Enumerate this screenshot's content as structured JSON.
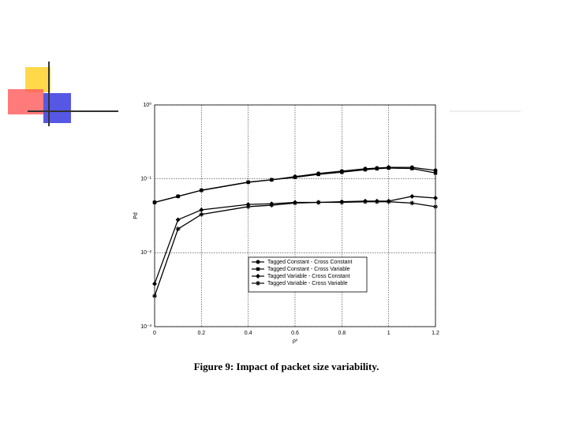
{
  "chart_data": {
    "type": "line",
    "title": "Figure 9: Impact of packet size variability.",
    "x_label": "ρᵛ",
    "y_label": "Pd",
    "x": [
      0,
      0.1,
      0.2,
      0.4,
      0.5,
      0.6,
      0.7,
      0.8,
      0.9,
      0.95,
      1.0,
      1.1,
      1.2
    ],
    "series": [
      {
        "name": "Tagged Constant - Cross Constant",
        "color": "#000000",
        "marker": "circle",
        "values": [
          0.048,
          0.058,
          0.07,
          0.09,
          0.097,
          0.107,
          0.118,
          0.127,
          0.137,
          0.14,
          0.143,
          0.143,
          0.13
        ]
      },
      {
        "name": "Tagged Constant - Cross Variable",
        "color": "#000000",
        "marker": "square",
        "values": [
          0.048,
          0.058,
          0.07,
          0.09,
          0.097,
          0.105,
          0.115,
          0.123,
          0.133,
          0.137,
          0.14,
          0.138,
          0.12
        ]
      },
      {
        "name": "Tagged Variable - Cross Constant",
        "color": "#000000",
        "marker": "diamond",
        "values": [
          0.0038,
          0.028,
          0.038,
          0.045,
          0.046,
          0.048,
          0.048,
          0.049,
          0.05,
          0.05,
          0.05,
          0.058,
          0.055
        ]
      },
      {
        "name": "Tagged Variable - Cross Variable",
        "color": "#000000",
        "marker": "star",
        "values": [
          0.0026,
          0.021,
          0.033,
          0.042,
          0.044,
          0.047,
          0.048,
          0.048,
          0.049,
          0.049,
          0.049,
          0.047,
          0.042
        ]
      }
    ],
    "xlim": [
      0,
      1.2
    ],
    "xticks": [
      0,
      0.2,
      0.4,
      0.6,
      0.8,
      1,
      1.2
    ],
    "ylim": [
      0.001,
      1
    ],
    "log_y": true,
    "yticks": [
      {
        "value": 0.001,
        "label": "10⁻³"
      },
      {
        "value": 0.01,
        "label": "10⁻²"
      },
      {
        "value": 0.1,
        "label": "10⁻¹"
      },
      {
        "value": 1,
        "label": "10⁰"
      }
    ],
    "grid": true,
    "legend": "lower right"
  }
}
